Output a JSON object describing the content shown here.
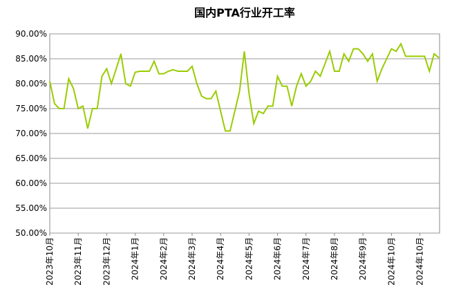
{
  "chart_data": {
    "type": "line",
    "title": "国内PTA行业开工率",
    "categories": [
      "2023年10月",
      null,
      null,
      null,
      null,
      null,
      "2023年11月",
      null,
      null,
      null,
      null,
      null,
      "2023年12月",
      null,
      null,
      null,
      null,
      null,
      "2024年1月",
      null,
      null,
      null,
      null,
      null,
      "2024年2月",
      null,
      null,
      null,
      null,
      null,
      "2024年3月",
      null,
      null,
      null,
      null,
      null,
      "2024年4月",
      null,
      null,
      null,
      null,
      null,
      "2024年5月",
      null,
      null,
      null,
      null,
      null,
      "2024年6月",
      null,
      null,
      null,
      null,
      null,
      "2024年7月",
      null,
      null,
      null,
      null,
      null,
      "2024年8月",
      null,
      null,
      null,
      null,
      null,
      "2024年9月",
      null,
      null,
      null,
      null,
      null,
      "2024年10月",
      null,
      null,
      null,
      null,
      null,
      "2024年10月",
      null,
      null,
      null,
      null
    ],
    "series": [
      {
        "color": "#99cc00",
        "values": [
          80.5,
          76,
          75,
          75,
          81,
          79,
          75,
          75.5,
          71,
          75,
          75,
          81.5,
          83,
          80,
          83,
          86,
          80,
          79.5,
          82.3,
          82.5,
          82.5,
          82.5,
          84.5,
          82,
          82,
          82.5,
          82.8,
          82.5,
          82.5,
          82.5,
          83.5,
          80,
          77.5,
          77,
          77,
          78.5,
          74.5,
          70.5,
          70.5,
          74.5,
          78.5,
          86.5,
          78,
          72,
          74.5,
          74,
          75.5,
          75.5,
          81.5,
          79.5,
          79.5,
          75.5,
          79.5,
          82,
          79.5,
          80.5,
          82.5,
          81.5,
          84,
          86.5,
          82.5,
          82.5,
          86,
          84.5,
          87,
          87,
          86,
          84.5,
          86,
          80.5,
          83,
          85,
          87,
          86.5,
          88,
          85.5,
          85.5,
          85.5,
          85.5,
          85.5,
          82.5,
          86,
          85.2
        ]
      }
    ],
    "ylim": [
      50,
      90
    ],
    "yticks": [
      {
        "value": 50,
        "label": "50.00%"
      },
      {
        "value": 55,
        "label": "55.00%"
      },
      {
        "value": 60,
        "label": "60.00%"
      },
      {
        "value": 65,
        "label": "65.00%"
      },
      {
        "value": 70,
        "label": "70.00%"
      },
      {
        "value": 75,
        "label": "75.00%"
      },
      {
        "value": 80,
        "label": "80.00%"
      },
      {
        "value": 85,
        "label": "85.00%"
      },
      {
        "value": 90,
        "label": "90.00%"
      }
    ],
    "grid": true
  }
}
